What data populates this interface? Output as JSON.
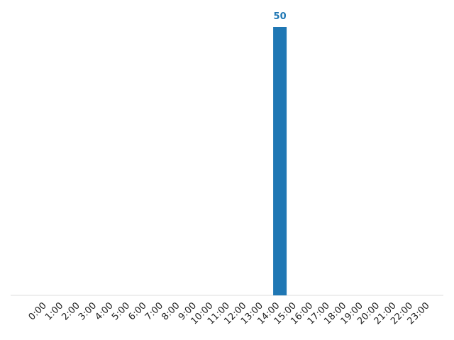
{
  "chart_data": {
    "type": "bar",
    "title": "",
    "xlabel": "",
    "ylabel": "",
    "categories": [
      "0:00",
      "1:00",
      "2:00",
      "3:00",
      "4:00",
      "5:00",
      "6:00",
      "7:00",
      "8:00",
      "9:00",
      "10:00",
      "11:00",
      "12:00",
      "13:00",
      "14:00",
      "15:00",
      "16:00",
      "17:00",
      "18:00",
      "19:00",
      "20:00",
      "21:00",
      "22:00",
      "23:00"
    ],
    "values": [
      0,
      0,
      0,
      0,
      0,
      0,
      0,
      0,
      0,
      0,
      0,
      0,
      0,
      0,
      50,
      0,
      0,
      0,
      0,
      0,
      0,
      0,
      0,
      0
    ],
    "data_labels": [
      "",
      "",
      "",
      "",
      "",
      "",
      "",
      "",
      "",
      "",
      "",
      "",
      "",
      "",
      "50",
      "",
      "",
      "",
      "",
      "",
      "",
      "",
      "",
      ""
    ],
    "ylim": [
      0,
      50
    ],
    "grid": false,
    "legend": "none",
    "colors": {
      "bar": "#1f77b4",
      "label": "#1f77b4",
      "axis": "#dddddd"
    }
  }
}
